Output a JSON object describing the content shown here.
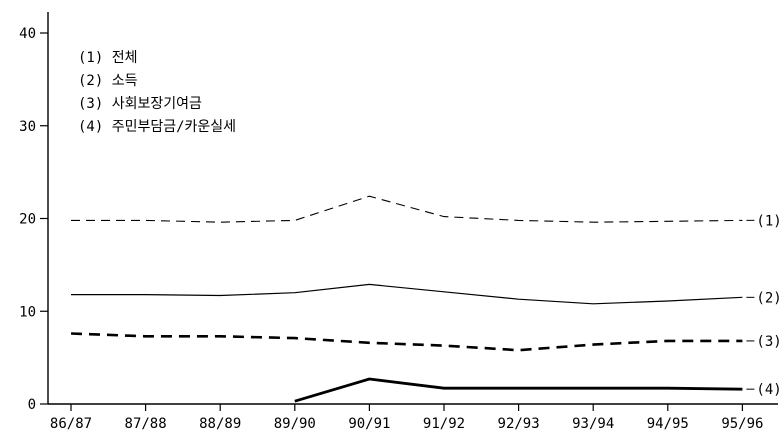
{
  "chart_data": {
    "type": "line",
    "title": "",
    "xlabel": "",
    "ylabel": "",
    "ylim": [
      0,
      40
    ],
    "yticks": [
      0,
      10,
      20,
      30,
      40
    ],
    "grid": false,
    "legend_position": "top-left",
    "x": [
      "86/87",
      "87/88",
      "88/89",
      "89/90",
      "90/91",
      "91/92",
      "92/93",
      "93/94",
      "94/95",
      "95/96"
    ],
    "series": [
      {
        "name": "(1) 전체",
        "end_label": "(1)",
        "style": "dashed-thin",
        "values": [
          19.8,
          19.8,
          19.6,
          19.8,
          22.4,
          20.2,
          19.8,
          19.6,
          19.7,
          19.8
        ]
      },
      {
        "name": "(2) 소득",
        "end_label": "(2)",
        "style": "solid-thin",
        "values": [
          11.8,
          11.8,
          11.7,
          12.0,
          12.9,
          12.1,
          11.3,
          10.8,
          11.1,
          11.5
        ]
      },
      {
        "name": "(3) 사회보장기여금",
        "end_label": "(3)",
        "style": "dashed-bold",
        "values": [
          7.6,
          7.3,
          7.3,
          7.1,
          6.6,
          6.3,
          5.8,
          6.4,
          6.8,
          6.8
        ]
      },
      {
        "name": "(4) 주민부담금/카운실세",
        "end_label": "(4)",
        "style": "solid-bold",
        "values": [
          null,
          null,
          null,
          0.3,
          2.7,
          1.7,
          1.7,
          1.7,
          1.7,
          1.6
        ]
      }
    ]
  }
}
